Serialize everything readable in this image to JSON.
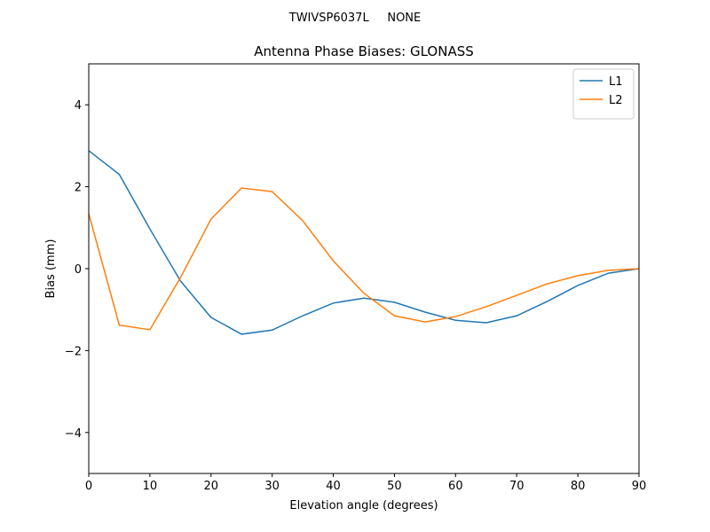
{
  "chart_data": {
    "type": "line",
    "suptitle": "TWIVSP6037L     NONE",
    "title": "Antenna Phase Biases: GLONASS",
    "xlabel": "Elevation angle (degrees)",
    "ylabel": "Bias (mm)",
    "x": [
      0,
      5,
      10,
      15,
      20,
      25,
      30,
      35,
      40,
      45,
      50,
      55,
      60,
      65,
      70,
      75,
      80,
      85,
      90
    ],
    "series": [
      {
        "name": "L1",
        "color": "#1f77b4",
        "values": [
          2.88,
          2.3,
          0.97,
          -0.3,
          -1.19,
          -1.6,
          -1.5,
          -1.15,
          -0.84,
          -0.72,
          -0.82,
          -1.06,
          -1.26,
          -1.32,
          -1.15,
          -0.8,
          -0.41,
          -0.11,
          0
        ]
      },
      {
        "name": "L2",
        "color": "#ff7f0e",
        "values": [
          1.34,
          -1.38,
          -1.49,
          -0.22,
          1.21,
          1.97,
          1.88,
          1.17,
          0.19,
          -0.6,
          -1.15,
          -1.3,
          -1.17,
          -0.93,
          -0.65,
          -0.37,
          -0.17,
          -0.04,
          0
        ]
      }
    ],
    "xlim": [
      0,
      90
    ],
    "xticks": [
      0,
      10,
      20,
      30,
      40,
      50,
      60,
      70,
      80,
      90
    ],
    "ylim": [
      -5,
      5
    ],
    "yticks": [
      {
        "value": -4,
        "label": "−4"
      },
      {
        "value": -2,
        "label": "−2"
      },
      0,
      2,
      4
    ],
    "legend": "upper right"
  }
}
